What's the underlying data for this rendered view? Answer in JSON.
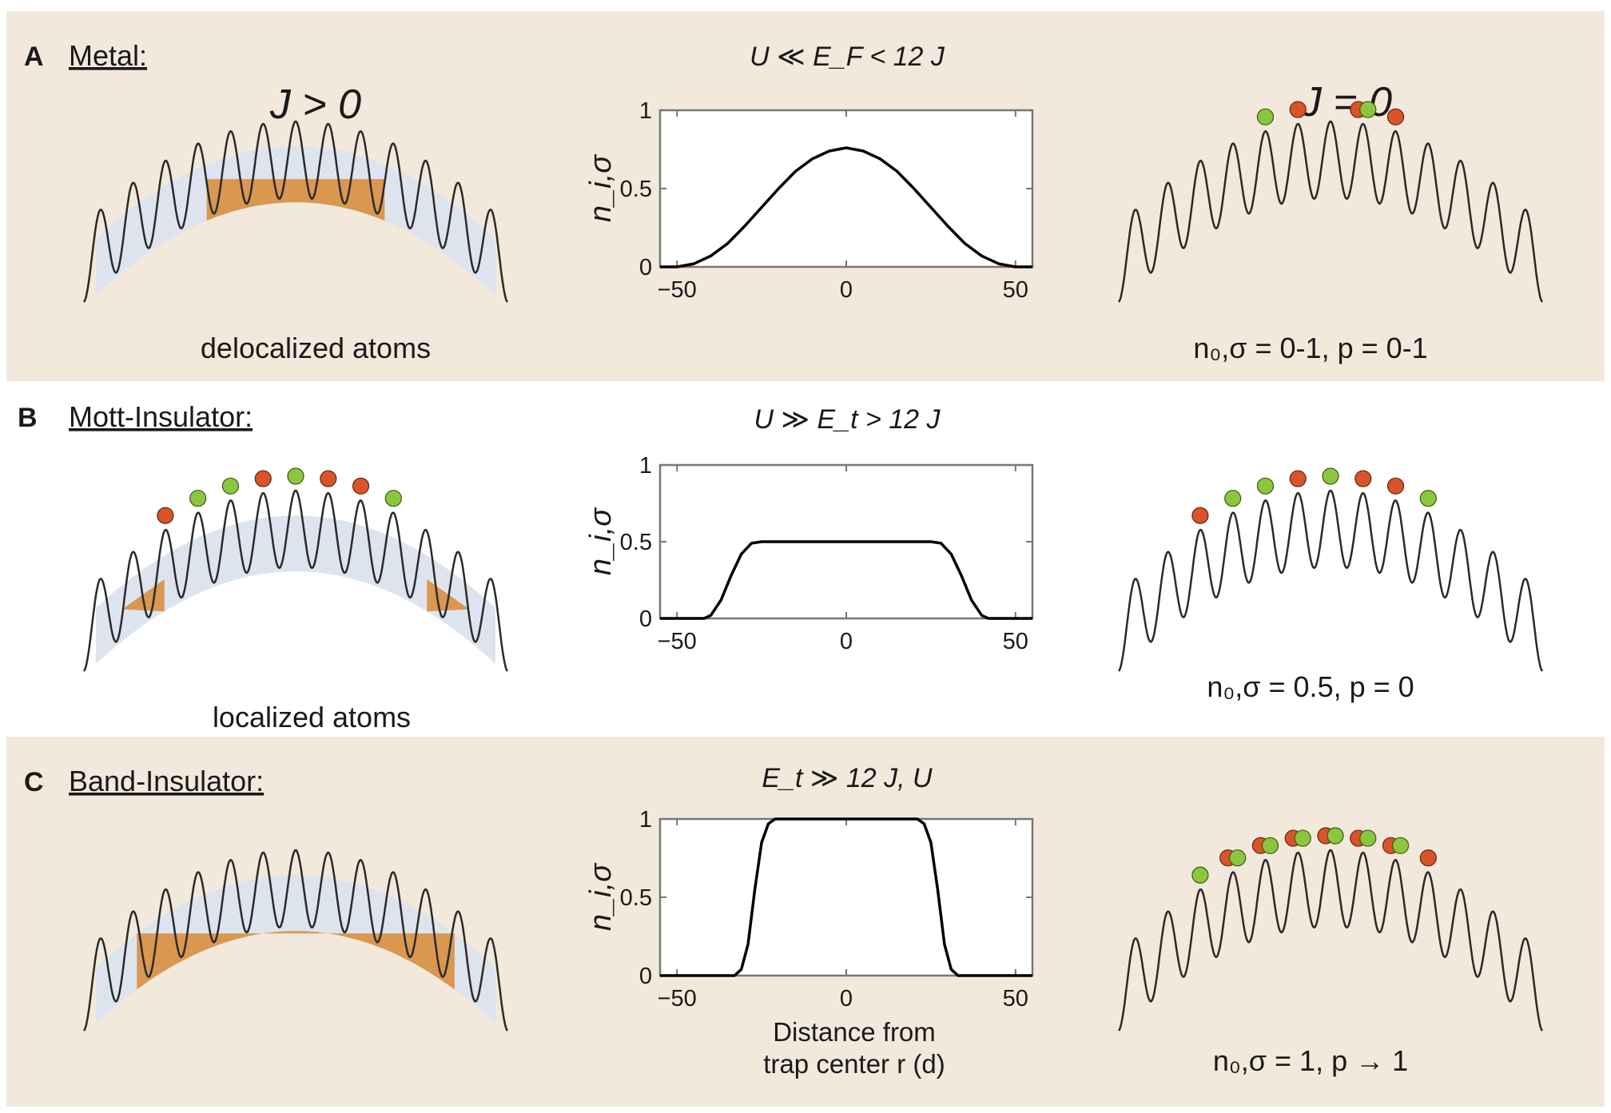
{
  "colors": {
    "panel_bg": "#f2e8dc",
    "orange_fill": "#d99750",
    "blue_fill": "#dde4ee",
    "red_atom": "#d9532b",
    "green_atom": "#8cc63f",
    "line": "#2a2a2a"
  },
  "rows": [
    {
      "letter": "A",
      "name": "Metal:",
      "condition": "U ≪ E_F < 12 J",
      "left_label": "J > 0",
      "left_caption": "delocalized atoms",
      "right_label": "J = 0",
      "right_caption": "n₀,σ = 0-1, p = 0-1",
      "fill": "delocalized",
      "atoms": [
        "green",
        "red",
        "",
        "rg",
        "red"
      ]
    },
    {
      "letter": "B",
      "name": "Mott-Insulator:",
      "condition": "U ≫ E_t > 12 J",
      "left_caption": "localized atoms",
      "right_caption": "n₀,σ = 0.5, p = 0",
      "fill": "localized",
      "atoms": [
        "red",
        "green",
        "green",
        "red",
        "green",
        "red",
        "red",
        "green"
      ]
    },
    {
      "letter": "C",
      "name": "Band-Insulator:",
      "condition": "E_t ≫ 12 J, U",
      "right_caption": "n₀,σ = 1, p → 1",
      "fill": "band",
      "atoms": [
        "green",
        "rg",
        "rg",
        "rg",
        "rg",
        "rg",
        "rg",
        "red"
      ]
    }
  ],
  "chart_data": [
    {
      "type": "line",
      "title": "U ≪ E_F < 12 J",
      "ylabel": "n_i,σ",
      "xlabel": "",
      "xlim": [
        -55,
        55
      ],
      "ylim": [
        0,
        1
      ],
      "xticks": [
        -50,
        0,
        50
      ],
      "yticks": [
        0,
        0.5,
        1
      ],
      "x": [
        -55,
        -50,
        -45,
        -40,
        -35,
        -30,
        -25,
        -20,
        -15,
        -10,
        -5,
        0,
        5,
        10,
        15,
        20,
        25,
        30,
        35,
        40,
        45,
        50,
        55
      ],
      "y": [
        0,
        0,
        0.02,
        0.07,
        0.15,
        0.26,
        0.38,
        0.5,
        0.61,
        0.69,
        0.74,
        0.76,
        0.74,
        0.69,
        0.61,
        0.5,
        0.38,
        0.26,
        0.15,
        0.07,
        0.02,
        0,
        0
      ]
    },
    {
      "type": "line",
      "title": "U ≫ E_t > 12 J",
      "ylabel": "n_i,σ",
      "xlabel": "",
      "xlim": [
        -55,
        55
      ],
      "ylim": [
        0,
        1
      ],
      "xticks": [
        -50,
        0,
        50
      ],
      "yticks": [
        0,
        0.5,
        1
      ],
      "x": [
        -55,
        -42,
        -40,
        -37,
        -34,
        -31,
        -28,
        -25,
        -20,
        0,
        20,
        25,
        28,
        31,
        34,
        37,
        40,
        42,
        55
      ],
      "y": [
        0,
        0,
        0.02,
        0.12,
        0.28,
        0.42,
        0.49,
        0.5,
        0.5,
        0.5,
        0.5,
        0.5,
        0.49,
        0.42,
        0.28,
        0.12,
        0.02,
        0,
        0
      ]
    },
    {
      "type": "line",
      "title": "E_t ≫ 12 J, U",
      "ylabel": "n_i,σ",
      "xlabel": "Distance from trap center r (d)",
      "xlabel_line1": "Distance from",
      "xlabel_line2": "trap center r (d)",
      "xlim": [
        -55,
        55
      ],
      "ylim": [
        0,
        1
      ],
      "xticks": [
        -50,
        0,
        50
      ],
      "yticks": [
        0,
        0.5,
        1
      ],
      "x": [
        -55,
        -33,
        -31,
        -29,
        -27,
        -25,
        -23,
        -21,
        -15,
        0,
        15,
        21,
        23,
        25,
        27,
        29,
        31,
        33,
        55
      ],
      "y": [
        0,
        0,
        0.04,
        0.2,
        0.55,
        0.85,
        0.97,
        1,
        1,
        1,
        1,
        1,
        0.97,
        0.85,
        0.55,
        0.2,
        0.04,
        0,
        0
      ]
    }
  ]
}
